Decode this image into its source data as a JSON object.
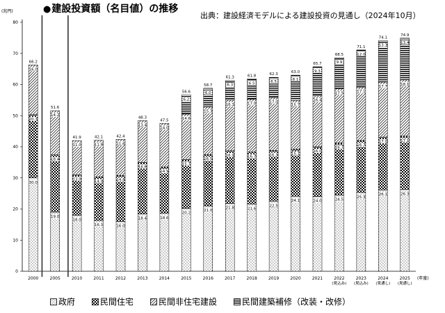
{
  "header": {
    "title_bullet": "●",
    "title": "建設投資額（名目値）の推移",
    "source": "出典：建設経済モデルによる建設投資の見通し（2024年10月）"
  },
  "chart_data": {
    "type": "bar",
    "stacked": true,
    "y_unit": "(兆円)",
    "x_unit": "(年度)",
    "ylim": [
      0,
      80
    ],
    "yticks": [
      0,
      10,
      20,
      30,
      40,
      50,
      60,
      70,
      80
    ],
    "grid": false,
    "legend_position": "bottom",
    "categories": [
      "2000",
      "2005",
      "2010",
      "2011",
      "2012",
      "2013",
      "2014",
      "2015",
      "2016",
      "2017",
      "2018",
      "2019",
      "2020",
      "2021",
      "2022",
      "2023",
      "2024",
      "2025"
    ],
    "category_sublabels": [
      "",
      "",
      "",
      "",
      "",
      "",
      "",
      "",
      "",
      "",
      "",
      "",
      "",
      "",
      "(見込み)",
      "(見込み)",
      "(見通し)",
      "(見通し)"
    ],
    "series": [
      {
        "name": "政府",
        "pattern": "dots",
        "values": [
          30.0,
          19.0,
          18.0,
          16.3,
          16.0,
          18.4,
          18.6,
          20.2,
          21.0,
          21.8,
          21.6,
          22.5,
          24.1,
          24.0,
          24.5,
          25.3,
          26.1,
          26.3
        ]
      },
      {
        "name": "民間住宅",
        "pattern": "checker",
        "values": [
          20.3,
          18.4,
          13.0,
          14.0,
          14.8,
          16.6,
          14.9,
          15.7,
          16.5,
          16.9,
          16.7,
          16.3,
          15.1,
          16.0,
          16.7,
          16.7,
          17.0,
          17.1
        ]
      },
      {
        "name": "民間非住宅建設",
        "pattern": "diagonal",
        "values": [
          16.0,
          14.2,
          11.0,
          11.8,
          11.6,
          13.4,
          14.0,
          14.6,
          15.3,
          16.3,
          17.0,
          17.0,
          15.7,
          16.4,
          17.5,
          17.1,
          17.7,
          18.1
        ]
      },
      {
        "name": "民間建築補修（改装・改修）",
        "pattern": "horizontal",
        "values": [
          null,
          null,
          null,
          null,
          null,
          null,
          null,
          6.2,
          6.0,
          6.3,
          6.5,
          6.5,
          8.1,
          9.3,
          9.9,
          12.0,
          13.3,
          13.4
        ]
      }
    ],
    "totals": [
      66.2,
      51.6,
      41.9,
      42.1,
      42.4,
      48.3,
      47.5,
      56.6,
      58.7,
      61.3,
      61.8,
      62.3,
      63.0,
      65.7,
      68.5,
      71.1,
      74.1,
      74.9
    ]
  }
}
